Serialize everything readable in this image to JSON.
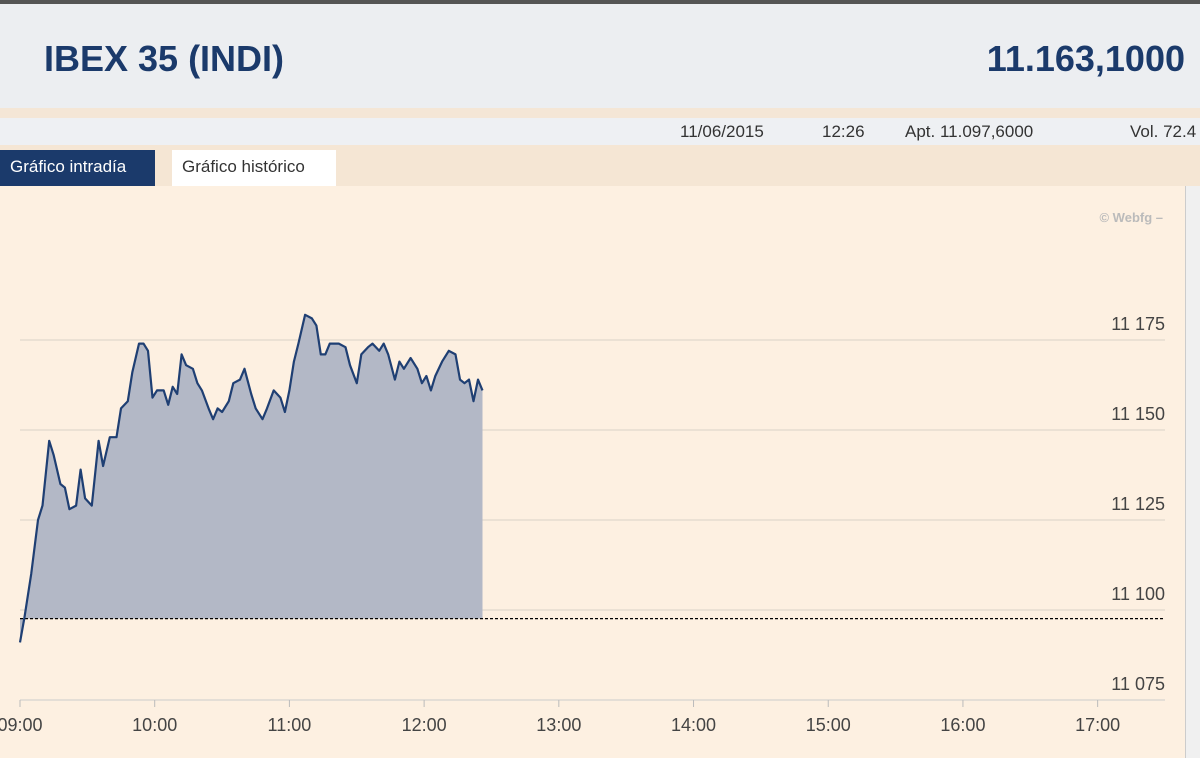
{
  "header": {
    "title": "IBEX 35 (INDI)",
    "value": "11.163,1000",
    "date": "11/06/2015",
    "time": "12:26",
    "apt": "Apt. 11.097,6000",
    "vol": "Vol. 72.4"
  },
  "tabs": [
    "Gráfico intradía",
    "Gráfico histórico"
  ],
  "watermark": "© Webfg –",
  "chart_data": {
    "type": "line",
    "color": "#1f3f73",
    "fill": "#b3b8c6",
    "reference": 11097.6,
    "reference_color": "#000000",
    "x": [
      540,
      542,
      545,
      548,
      550,
      553,
      555,
      558,
      560,
      562,
      565,
      567,
      569,
      572,
      575,
      577,
      580,
      583,
      585,
      588,
      590,
      593,
      595,
      597,
      599,
      601,
      604,
      606,
      608,
      610,
      612,
      614,
      617,
      619,
      621,
      624,
      626,
      628,
      630,
      633,
      635,
      638,
      640,
      643,
      645,
      648,
      650,
      653,
      656,
      658,
      660,
      662,
      664,
      667,
      670,
      672,
      674,
      676,
      678,
      682,
      685,
      687,
      690,
      692,
      695,
      697,
      700,
      702,
      704,
      707,
      709,
      711,
      714,
      717,
      719,
      721,
      723,
      725,
      728,
      731,
      734,
      736,
      738,
      740,
      742,
      744,
      746
    ],
    "values": [
      11091,
      11098,
      11110,
      11125,
      11129,
      11147,
      11143,
      11135,
      11134,
      11128,
      11129,
      11139,
      11131,
      11129,
      11147,
      11140,
      11148,
      11148,
      11156,
      11158,
      11166,
      11174,
      11174,
      11172,
      11159,
      11161,
      11161,
      11157,
      11162,
      11160,
      11171,
      11168,
      11167,
      11163,
      11161,
      11156,
      11153,
      11156,
      11155,
      11158,
      11163,
      11164,
      11167,
      11160,
      11156,
      11153,
      11156,
      11161,
      11159,
      11155,
      11161,
      11169,
      11174,
      11182,
      11181,
      11179,
      11171,
      11171,
      11174,
      11174,
      11173,
      11168,
      11163,
      11171,
      11173,
      11174,
      11172,
      11174,
      11171,
      11164,
      11169,
      11167,
      11170,
      11167,
      11163,
      11165,
      11161,
      11165,
      11169,
      11172,
      11171,
      11164,
      11163,
      11164,
      11158,
      11164,
      11161
    ],
    "xlim": [
      540,
      1050
    ],
    "xticks": [
      {
        "value": 540,
        "label": "09:00"
      },
      {
        "value": 600,
        "label": "10:00"
      },
      {
        "value": 660,
        "label": "11:00"
      },
      {
        "value": 720,
        "label": "12:00"
      },
      {
        "value": 780,
        "label": "13:00"
      },
      {
        "value": 840,
        "label": "14:00"
      },
      {
        "value": 900,
        "label": "15:00"
      },
      {
        "value": 960,
        "label": "16:00"
      },
      {
        "value": 1020,
        "label": "17:00"
      }
    ],
    "ylim": [
      11075,
      11215
    ],
    "yticks": [
      {
        "value": 11075,
        "label": "11 075"
      },
      {
        "value": 11100,
        "label": "11 100"
      },
      {
        "value": 11125,
        "label": "11 125"
      },
      {
        "value": 11150,
        "label": "11 150"
      },
      {
        "value": 11175,
        "label": "11 175"
      }
    ],
    "grid": true
  }
}
